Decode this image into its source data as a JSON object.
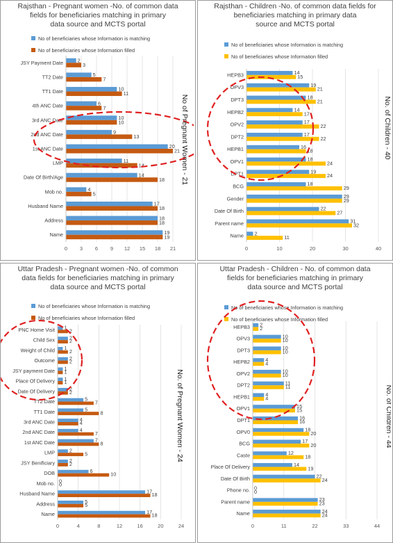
{
  "colors": {
    "matching": "#5B9BD5",
    "rj_pw_filled": "#C55A11",
    "filled_gold": "#FFC000",
    "ellipse": "#E02020"
  },
  "chart_data": [
    {
      "type": "bar",
      "title": "Rajsthan - Pregnant women -No. of common data fields for beneficiaries matching in primary data source and MCTS portal",
      "title_lines": [
        "Rajsthan - Pregnant women -No. of common data",
        "fields for beneficiaries matching in primary",
        "data source and MCTS portal"
      ],
      "side_label": "No of Pregnant Women - 21",
      "categories": [
        "JSY Payment Date",
        "TT2 Date",
        "TT1 Date",
        "4th ANC Date",
        "3rd ANC Date",
        "2nd ANC Date",
        "1st ANC Date",
        "LMP",
        "Date Of Birth/Age",
        "Mob no.",
        "Husband Name",
        "Address",
        "Name"
      ],
      "series": [
        {
          "name": "No of beneficiaries whose Information is matching",
          "values": [
            2,
            5,
            10,
            6,
            10,
            9,
            20,
            11,
            14,
            4,
            17,
            18,
            19
          ]
        },
        {
          "name": "No of beneficiaries whose Information filled",
          "values": [
            3,
            7,
            11,
            7,
            10,
            13,
            21,
            14,
            18,
            5,
            18,
            18,
            19
          ]
        }
      ],
      "xticks": [
        0,
        3,
        6,
        9,
        12,
        15,
        18,
        21
      ],
      "xlim": [
        0,
        21
      ],
      "legend": "top"
    },
    {
      "type": "bar",
      "title": "Rajsthan - Children -No. of common data fields for beneficiaries matching in primary data source and MCTS portal",
      "title_lines": [
        "Rajsthan - Children -No. of common data fields for",
        "beneficiaries matching in primary data",
        "source and MCTS portal"
      ],
      "side_label": "No. of Children - 40",
      "categories": [
        "HEPB3",
        "OPV3",
        "DPT3",
        "HEPB2",
        "OPV2",
        "DPT2",
        "HEPB1",
        "OPV1",
        "DPT1",
        "BCG",
        "Gender",
        "Date Of Birth",
        "Parent name",
        "Name"
      ],
      "series": [
        {
          "name": "No of beneficiaries whose Information is matching",
          "values": [
            14,
            19,
            18,
            14,
            17,
            17,
            16,
            18,
            19,
            18,
            29,
            22,
            31,
            2
          ]
        },
        {
          "name": "No of beneficiaries whose Information filled",
          "values": [
            15,
            21,
            21,
            17,
            22,
            22,
            18,
            24,
            24,
            29,
            29,
            27,
            32,
            11
          ]
        }
      ],
      "xticks": [
        0,
        10,
        20,
        30,
        40
      ],
      "xlim": [
        0,
        40
      ],
      "legend": "top"
    },
    {
      "type": "bar",
      "title": "Uttar Pradesh - Pregnant women -No. of common data fields for beneficiaries matching in primary data source and MCTS portal",
      "title_lines": [
        "Uttar Pradesh - Pregnant women -No. of common",
        "data fields for beneficiaries matching in primary",
        "data source and MCTS portal"
      ],
      "side_label": "No. of Pregnant Women - 24",
      "categories": [
        "PNC Home Visit",
        "Child Sex",
        "Weight of Child",
        "Outcome",
        "JSY payment Date",
        "Place Of Delivery",
        "Date Of Delivery",
        "TT2 Date",
        "TT1 Date",
        "3rd ANC Date",
        "2nd ANC Date",
        "1st ANC Date",
        "LMP",
        "JSY Benificiary",
        "DOB",
        "Mob no.",
        "Husband Name",
        "Address",
        "Name"
      ],
      "series": [
        {
          "name": "No of beneficiaries whose Information is matching",
          "values": [
            1,
            2,
            1,
            2,
            1,
            1,
            2,
            5,
            5,
            4,
            4,
            7,
            2,
            2,
            6,
            0,
            17,
            5,
            17
          ]
        },
        {
          "name": "No of beneficiaries whose Information filled",
          "values": [
            2,
            2,
            2,
            2,
            1,
            1,
            2,
            7,
            8,
            4,
            7,
            8,
            5,
            2,
            10,
            0,
            18,
            5,
            18
          ]
        }
      ],
      "xticks": [
        0,
        4,
        8,
        12,
        16,
        20,
        24
      ],
      "xlim": [
        0,
        24
      ],
      "legend": "top"
    },
    {
      "type": "bar",
      "title": "Uttar Pradesh - Children - No. of common data fields for beneficiaries matching in primary data source and MCTS portal",
      "title_lines": [
        "Uttar Pradesh - Children - No. of common data",
        "fields for beneficiaries matching in primary",
        "data source and MCTS portal"
      ],
      "side_label": "No. of Children - 44",
      "categories": [
        "HEPB3",
        "OPV3",
        "DPT3",
        "HEPB2",
        "OPV2",
        "DPT2",
        "HEPB1",
        "OPV1",
        "DPT1",
        "OPV0",
        "BCG",
        "Caste",
        "Place Of Delivery",
        "Date Of Birth",
        "Phone no.",
        "Parent name",
        "Name"
      ],
      "series": [
        {
          "name": "No of beneficiaries whose Information is matching",
          "values": [
            2,
            10,
            10,
            4,
            10,
            11,
            4,
            15,
            16,
            18,
            17,
            12,
            14,
            22,
            0,
            23,
            24
          ]
        },
        {
          "name": "No of beneficiaries whose Information filled",
          "values": [
            2,
            10,
            10,
            4,
            10,
            11,
            4,
            15,
            16,
            20,
            20,
            18,
            19,
            24,
            0,
            23,
            24
          ]
        }
      ],
      "xticks": [
        0,
        11,
        22,
        33,
        44
      ],
      "xlim": [
        0,
        44
      ],
      "legend": "top"
    }
  ]
}
